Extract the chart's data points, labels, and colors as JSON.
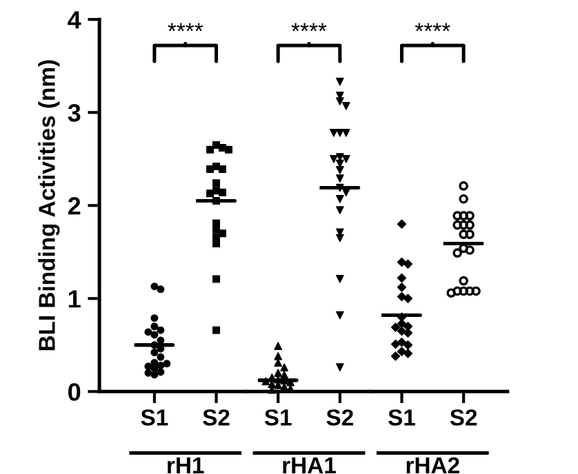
{
  "chart_data": [
    {
      "type": "scatter",
      "ylabel": "BLI Binding Activities (nm)",
      "xlabel": "rH1",
      "categories": [
        "S1",
        "S2"
      ],
      "ylim": [
        0,
        4
      ],
      "yticks": [
        0,
        1,
        2,
        3,
        4
      ],
      "annotations": [
        "****"
      ],
      "series": [
        {
          "x": [
            "S1",
            "S1",
            "S1",
            "S1",
            "S1",
            "S1",
            "S1",
            "S1",
            "S1",
            "S1",
            "S1",
            "S1",
            "S1",
            "S1",
            "S1",
            "S1",
            "S1",
            "S1",
            "S1",
            "S1"
          ],
          "marker": "circle",
          "color": "#000000",
          "values": [
            1.13,
            1.1,
            0.79,
            0.7,
            0.66,
            0.64,
            0.61,
            0.55,
            0.5,
            0.46,
            0.42,
            0.37,
            0.31,
            0.28,
            0.27,
            0.25,
            0.21,
            0.18,
            0.2,
            0.3
          ]
        },
        {
          "x": [
            "S2",
            "S2",
            "S2",
            "S2",
            "S2",
            "S2",
            "S2",
            "S2",
            "S2",
            "S2",
            "S2",
            "S2",
            "S2",
            "S2",
            "S2",
            "S2",
            "S2",
            "S2",
            "S2"
          ],
          "marker": "square",
          "color": "#000000",
          "values": [
            2.65,
            2.62,
            2.6,
            2.6,
            2.42,
            2.39,
            2.39,
            2.24,
            2.16,
            2.14,
            2.13,
            2.05,
            1.81,
            1.74,
            1.7,
            1.66,
            1.59,
            1.21,
            0.66
          ]
        },
        {
          "type": "box",
          "color": "#000000",
          "boxes": [
            {
              "low": 0.5,
              "q1": 0.5,
              "median": 0.5,
              "q3": 0.5,
              "high": 0.5
            },
            {
              "low": 2.05,
              "q1": 2.05,
              "median": 2.05,
              "q3": 2.05,
              "high": 2.05
            }
          ]
        }
      ]
    },
    {
      "type": "scatter",
      "xlabel": "rHA1",
      "categories": [
        "S1",
        "S2"
      ],
      "ylim": [
        0,
        4
      ],
      "tick_labels": "x",
      "annotations": [
        "****"
      ],
      "series": [
        {
          "x": [
            "S1",
            "S1",
            "S1",
            "S1",
            "S1",
            "S1",
            "S1",
            "S1",
            "S1",
            "S1",
            "S1",
            "S1",
            "S1",
            "S1",
            "S1",
            "S1"
          ],
          "marker": "triangle",
          "color": "#000000",
          "values": [
            0.49,
            0.38,
            0.31,
            0.26,
            0.2,
            0.18,
            0.15,
            0.13,
            0.12,
            0.1,
            0.08,
            0.07,
            0.05,
            0.03,
            0.02,
            0.11
          ]
        },
        {
          "x": [
            "S2",
            "S2",
            "S2",
            "S2",
            "S2",
            "S2",
            "S2",
            "S2",
            "S2",
            "S2",
            "S2",
            "S2",
            "S2",
            "S2",
            "S2",
            "S2",
            "S2",
            "S2",
            "S2",
            "S2",
            "S2",
            "S2"
          ],
          "marker": "triangle_down",
          "color": "#000000",
          "values": [
            3.33,
            3.18,
            3.12,
            3.07,
            2.78,
            2.78,
            2.78,
            2.52,
            2.5,
            2.5,
            2.45,
            2.38,
            2.29,
            2.19,
            2.14,
            2.07,
            1.95,
            1.71,
            1.65,
            1.21,
            0.82,
            0.26
          ]
        },
        {
          "type": "box",
          "color": "#000000",
          "boxes": [
            {
              "low": 0.12,
              "q1": 0.12,
              "median": 0.12,
              "q3": 0.12,
              "high": 0.12
            },
            {
              "low": 2.19,
              "q1": 2.19,
              "median": 2.19,
              "q3": 2.19,
              "high": 2.19
            }
          ]
        }
      ]
    },
    {
      "type": "scatter",
      "xlabel": "rHA2",
      "categories": [
        "S1",
        "S2"
      ],
      "ylim": [
        0,
        4
      ],
      "tick_labels": "x",
      "annotations": [
        "****"
      ],
      "series": [
        {
          "x": [
            "S1",
            "S1",
            "S1",
            "S1",
            "S1",
            "S1",
            "S1",
            "S1",
            "S1",
            "S1",
            "S1",
            "S1",
            "S1",
            "S1",
            "S1",
            "S1",
            "S1",
            "S1",
            "S1"
          ],
          "marker": "diamond",
          "color": "#000000",
          "values": [
            1.8,
            1.39,
            1.37,
            1.22,
            1.12,
            1.02,
            1.0,
            0.8,
            0.73,
            0.7,
            0.69,
            0.65,
            0.63,
            0.53,
            0.5,
            0.51,
            0.43,
            0.41,
            0.38
          ]
        },
        {
          "x": [
            "S2",
            "S2",
            "S2",
            "S2",
            "S2",
            "S2",
            "S2",
            "S2",
            "S2",
            "S2",
            "S2",
            "S2",
            "S2",
            "S2",
            "S2",
            "S2",
            "S2",
            "S2",
            "S2"
          ],
          "marker": "open_circle",
          "color": "#000000",
          "values": [
            2.21,
            2.07,
            1.89,
            1.89,
            1.89,
            1.79,
            1.79,
            1.79,
            1.69,
            1.69,
            1.54,
            1.52,
            1.49,
            1.19,
            1.08,
            1.08,
            1.08,
            1.08,
            1.06
          ]
        },
        {
          "type": "box",
          "color": "#000000",
          "boxes": [
            {
              "low": 0.82,
              "q1": 0.82,
              "median": 0.82,
              "q3": 0.82,
              "high": 0.82
            },
            {
              "low": 1.59,
              "q1": 1.59,
              "median": 1.59,
              "q3": 1.59,
              "high": 1.59
            }
          ]
        }
      ]
    }
  ]
}
